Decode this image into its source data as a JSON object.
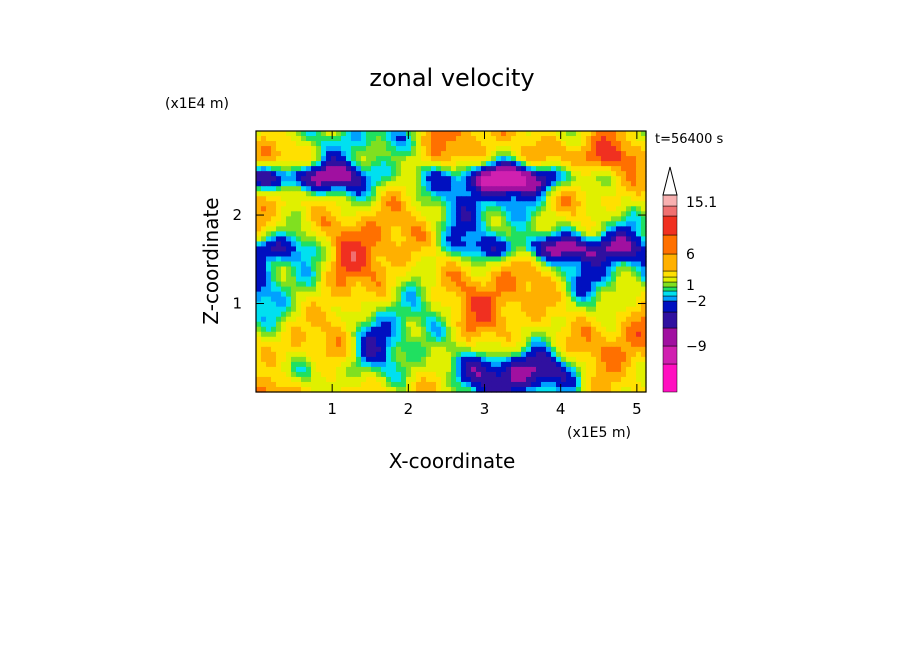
{
  "chart_data": {
    "type": "heatmap",
    "title": "zonal velocity",
    "xlabel": "X-coordinate",
    "ylabel": "Z-coordinate",
    "x_unit": "(x1E5 m)",
    "y_unit": "(x1E4 m)",
    "time_label": "t=56400 s",
    "xlim": [
      0,
      5.12
    ],
    "ylim": [
      0,
      2.95
    ],
    "x_ticks": [
      1,
      2,
      3,
      4,
      5
    ],
    "y_ticks": [
      1,
      2
    ],
    "colorbar": {
      "labels": [
        "15.1",
        "6",
        "1",
        "−2",
        "−9"
      ],
      "label_values": [
        15.1,
        6,
        1,
        -2,
        -9
      ],
      "levels": [
        -15,
        -12,
        -9,
        -6,
        -4,
        -2,
        -1,
        0,
        1,
        2,
        4,
        6,
        8,
        10,
        12.5,
        15.1
      ],
      "colors": [
        "#ff10c0",
        "#d020b0",
        "#a010a0",
        "#3010a0",
        "#0010c0",
        "#00a0ff",
        "#00e0f0",
        "#20e060",
        "#80e020",
        "#e0f000",
        "#ffe000",
        "#ffb000",
        "#ff7000",
        "#f03020",
        "#f07070",
        "#f8b0b0"
      ],
      "extend_max": true
    },
    "field_description_values": {
      "min": -15,
      "max": 15.1
    }
  }
}
